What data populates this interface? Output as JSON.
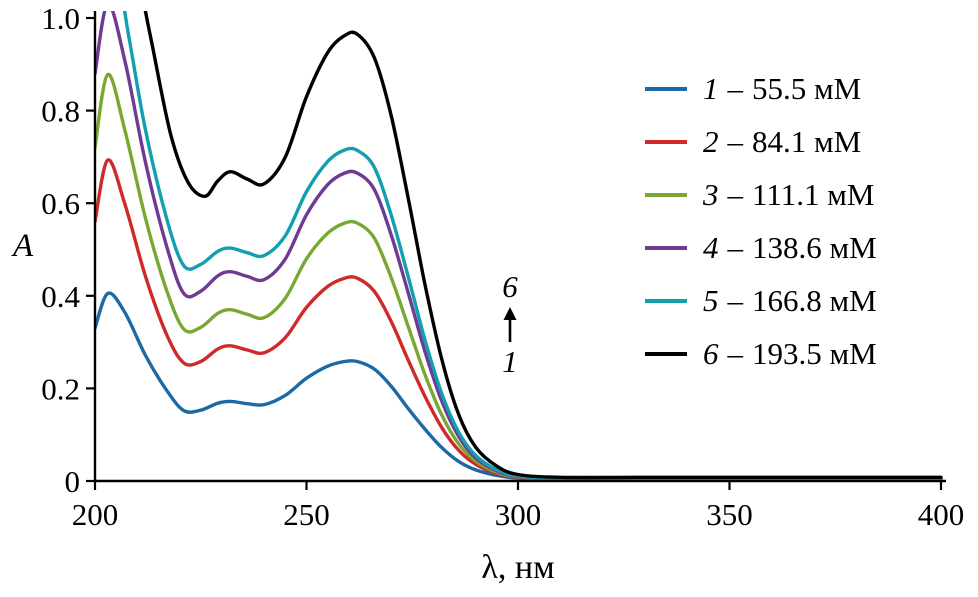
{
  "axes": {
    "x_tick_labels": [
      "200",
      "250",
      "300",
      "350",
      "400"
    ],
    "y_tick_labels": [
      "0",
      "0.2",
      "0.4",
      "0.6",
      "0.8",
      "1.0"
    ]
  },
  "legend": {
    "separator": "–"
  },
  "chart_data": {
    "type": "line",
    "title": "",
    "xlabel": "λ, нм",
    "ylabel": "A",
    "xlim": [
      200,
      400
    ],
    "ylim": [
      0,
      1.0
    ],
    "x_ticks": [
      200,
      250,
      300,
      350,
      400
    ],
    "y_ticks": [
      0,
      0.2,
      0.4,
      0.6,
      0.8,
      1.0
    ],
    "grid": false,
    "legend_position": "upper right",
    "annotation": {
      "top_label": "6",
      "bottom_label": "1",
      "arrow": "up"
    },
    "series": [
      {
        "id": "1",
        "label_num": "1",
        "concentration": "55.5 мМ",
        "color": "#1b6aa5",
        "points": [
          [
            200,
            0.33
          ],
          [
            203,
            0.405
          ],
          [
            207,
            0.365
          ],
          [
            212,
            0.27
          ],
          [
            217,
            0.195
          ],
          [
            221,
            0.152
          ],
          [
            225,
            0.153
          ],
          [
            229,
            0.168
          ],
          [
            232,
            0.172
          ],
          [
            236,
            0.167
          ],
          [
            240,
            0.165
          ],
          [
            245,
            0.185
          ],
          [
            250,
            0.222
          ],
          [
            255,
            0.248
          ],
          [
            259,
            0.258
          ],
          [
            262,
            0.258
          ],
          [
            266,
            0.242
          ],
          [
            270,
            0.205
          ],
          [
            274,
            0.157
          ],
          [
            278,
            0.112
          ],
          [
            282,
            0.072
          ],
          [
            286,
            0.042
          ],
          [
            290,
            0.024
          ],
          [
            295,
            0.012
          ],
          [
            300,
            0.006
          ],
          [
            310,
            0.004
          ],
          [
            330,
            0.004
          ],
          [
            360,
            0.004
          ],
          [
            400,
            0.004
          ]
        ]
      },
      {
        "id": "2",
        "label_num": "2",
        "concentration": "84.1 мМ",
        "color": "#cf2a2a",
        "points": [
          [
            200,
            0.56
          ],
          [
            203,
            0.693
          ],
          [
            207,
            0.6
          ],
          [
            212,
            0.44
          ],
          [
            217,
            0.315
          ],
          [
            221,
            0.255
          ],
          [
            225,
            0.258
          ],
          [
            229,
            0.285
          ],
          [
            232,
            0.292
          ],
          [
            236,
            0.283
          ],
          [
            240,
            0.277
          ],
          [
            245,
            0.31
          ],
          [
            250,
            0.375
          ],
          [
            255,
            0.42
          ],
          [
            259,
            0.438
          ],
          [
            262,
            0.438
          ],
          [
            266,
            0.41
          ],
          [
            270,
            0.345
          ],
          [
            274,
            0.262
          ],
          [
            278,
            0.183
          ],
          [
            282,
            0.115
          ],
          [
            286,
            0.066
          ],
          [
            290,
            0.036
          ],
          [
            295,
            0.016
          ],
          [
            300,
            0.008
          ],
          [
            310,
            0.005
          ],
          [
            330,
            0.005
          ],
          [
            360,
            0.005
          ],
          [
            400,
            0.005
          ]
        ]
      },
      {
        "id": "3",
        "label_num": "3",
        "concentration": "111.1 мМ",
        "color": "#79a832",
        "points": [
          [
            200,
            0.72
          ],
          [
            203,
            0.878
          ],
          [
            207,
            0.76
          ],
          [
            212,
            0.565
          ],
          [
            217,
            0.41
          ],
          [
            221,
            0.328
          ],
          [
            225,
            0.332
          ],
          [
            229,
            0.362
          ],
          [
            232,
            0.37
          ],
          [
            236,
            0.36
          ],
          [
            240,
            0.353
          ],
          [
            245,
            0.395
          ],
          [
            250,
            0.48
          ],
          [
            255,
            0.535
          ],
          [
            259,
            0.557
          ],
          [
            262,
            0.557
          ],
          [
            266,
            0.525
          ],
          [
            270,
            0.44
          ],
          [
            274,
            0.335
          ],
          [
            278,
            0.23
          ],
          [
            282,
            0.142
          ],
          [
            286,
            0.08
          ],
          [
            290,
            0.043
          ],
          [
            295,
            0.019
          ],
          [
            300,
            0.009
          ],
          [
            310,
            0.005
          ],
          [
            330,
            0.005
          ],
          [
            360,
            0.005
          ],
          [
            400,
            0.005
          ]
        ]
      },
      {
        "id": "4",
        "label_num": "4",
        "concentration": "138.6 мМ",
        "color": "#6f3a93",
        "points": [
          [
            200,
            0.88
          ],
          [
            203,
            1.03
          ],
          [
            207,
            0.91
          ],
          [
            212,
            0.685
          ],
          [
            217,
            0.505
          ],
          [
            221,
            0.405
          ],
          [
            225,
            0.41
          ],
          [
            229,
            0.443
          ],
          [
            232,
            0.452
          ],
          [
            236,
            0.442
          ],
          [
            240,
            0.435
          ],
          [
            245,
            0.48
          ],
          [
            250,
            0.575
          ],
          [
            255,
            0.64
          ],
          [
            259,
            0.665
          ],
          [
            262,
            0.665
          ],
          [
            266,
            0.63
          ],
          [
            270,
            0.532
          ],
          [
            274,
            0.408
          ],
          [
            278,
            0.28
          ],
          [
            282,
            0.172
          ],
          [
            286,
            0.096
          ],
          [
            290,
            0.05
          ],
          [
            295,
            0.022
          ],
          [
            300,
            0.01
          ],
          [
            310,
            0.006
          ],
          [
            330,
            0.006
          ],
          [
            360,
            0.006
          ],
          [
            400,
            0.006
          ]
        ]
      },
      {
        "id": "5",
        "label_num": "5",
        "concentration": "166.8 мМ",
        "color": "#129fb0",
        "points": [
          [
            200,
            1.12
          ],
          [
            204,
            1.16
          ],
          [
            208,
            0.96
          ],
          [
            212,
            0.755
          ],
          [
            217,
            0.565
          ],
          [
            221,
            0.465
          ],
          [
            225,
            0.468
          ],
          [
            229,
            0.496
          ],
          [
            232,
            0.503
          ],
          [
            236,
            0.493
          ],
          [
            240,
            0.487
          ],
          [
            245,
            0.53
          ],
          [
            250,
            0.625
          ],
          [
            255,
            0.69
          ],
          [
            259,
            0.715
          ],
          [
            262,
            0.714
          ],
          [
            266,
            0.678
          ],
          [
            270,
            0.575
          ],
          [
            274,
            0.443
          ],
          [
            278,
            0.305
          ],
          [
            282,
            0.188
          ],
          [
            286,
            0.105
          ],
          [
            290,
            0.055
          ],
          [
            295,
            0.024
          ],
          [
            300,
            0.011
          ],
          [
            310,
            0.006
          ],
          [
            330,
            0.006
          ],
          [
            360,
            0.006
          ],
          [
            400,
            0.006
          ]
        ]
      },
      {
        "id": "6",
        "label_num": "6",
        "concentration": "193.5 мМ",
        "color": "#000000",
        "points": [
          [
            200,
            1.9
          ],
          [
            206,
            1.45
          ],
          [
            210,
            1.12
          ],
          [
            214,
            0.92
          ],
          [
            218,
            0.745
          ],
          [
            222,
            0.645
          ],
          [
            226,
            0.615
          ],
          [
            229,
            0.648
          ],
          [
            232,
            0.668
          ],
          [
            236,
            0.652
          ],
          [
            240,
            0.642
          ],
          [
            245,
            0.7
          ],
          [
            250,
            0.83
          ],
          [
            255,
            0.925
          ],
          [
            259,
            0.962
          ],
          [
            262,
            0.965
          ],
          [
            266,
            0.915
          ],
          [
            270,
            0.79
          ],
          [
            274,
            0.613
          ],
          [
            278,
            0.425
          ],
          [
            282,
            0.262
          ],
          [
            286,
            0.143
          ],
          [
            290,
            0.073
          ],
          [
            295,
            0.032
          ],
          [
            300,
            0.014
          ],
          [
            310,
            0.008
          ],
          [
            330,
            0.008
          ],
          [
            360,
            0.008
          ],
          [
            400,
            0.008
          ]
        ]
      }
    ]
  }
}
